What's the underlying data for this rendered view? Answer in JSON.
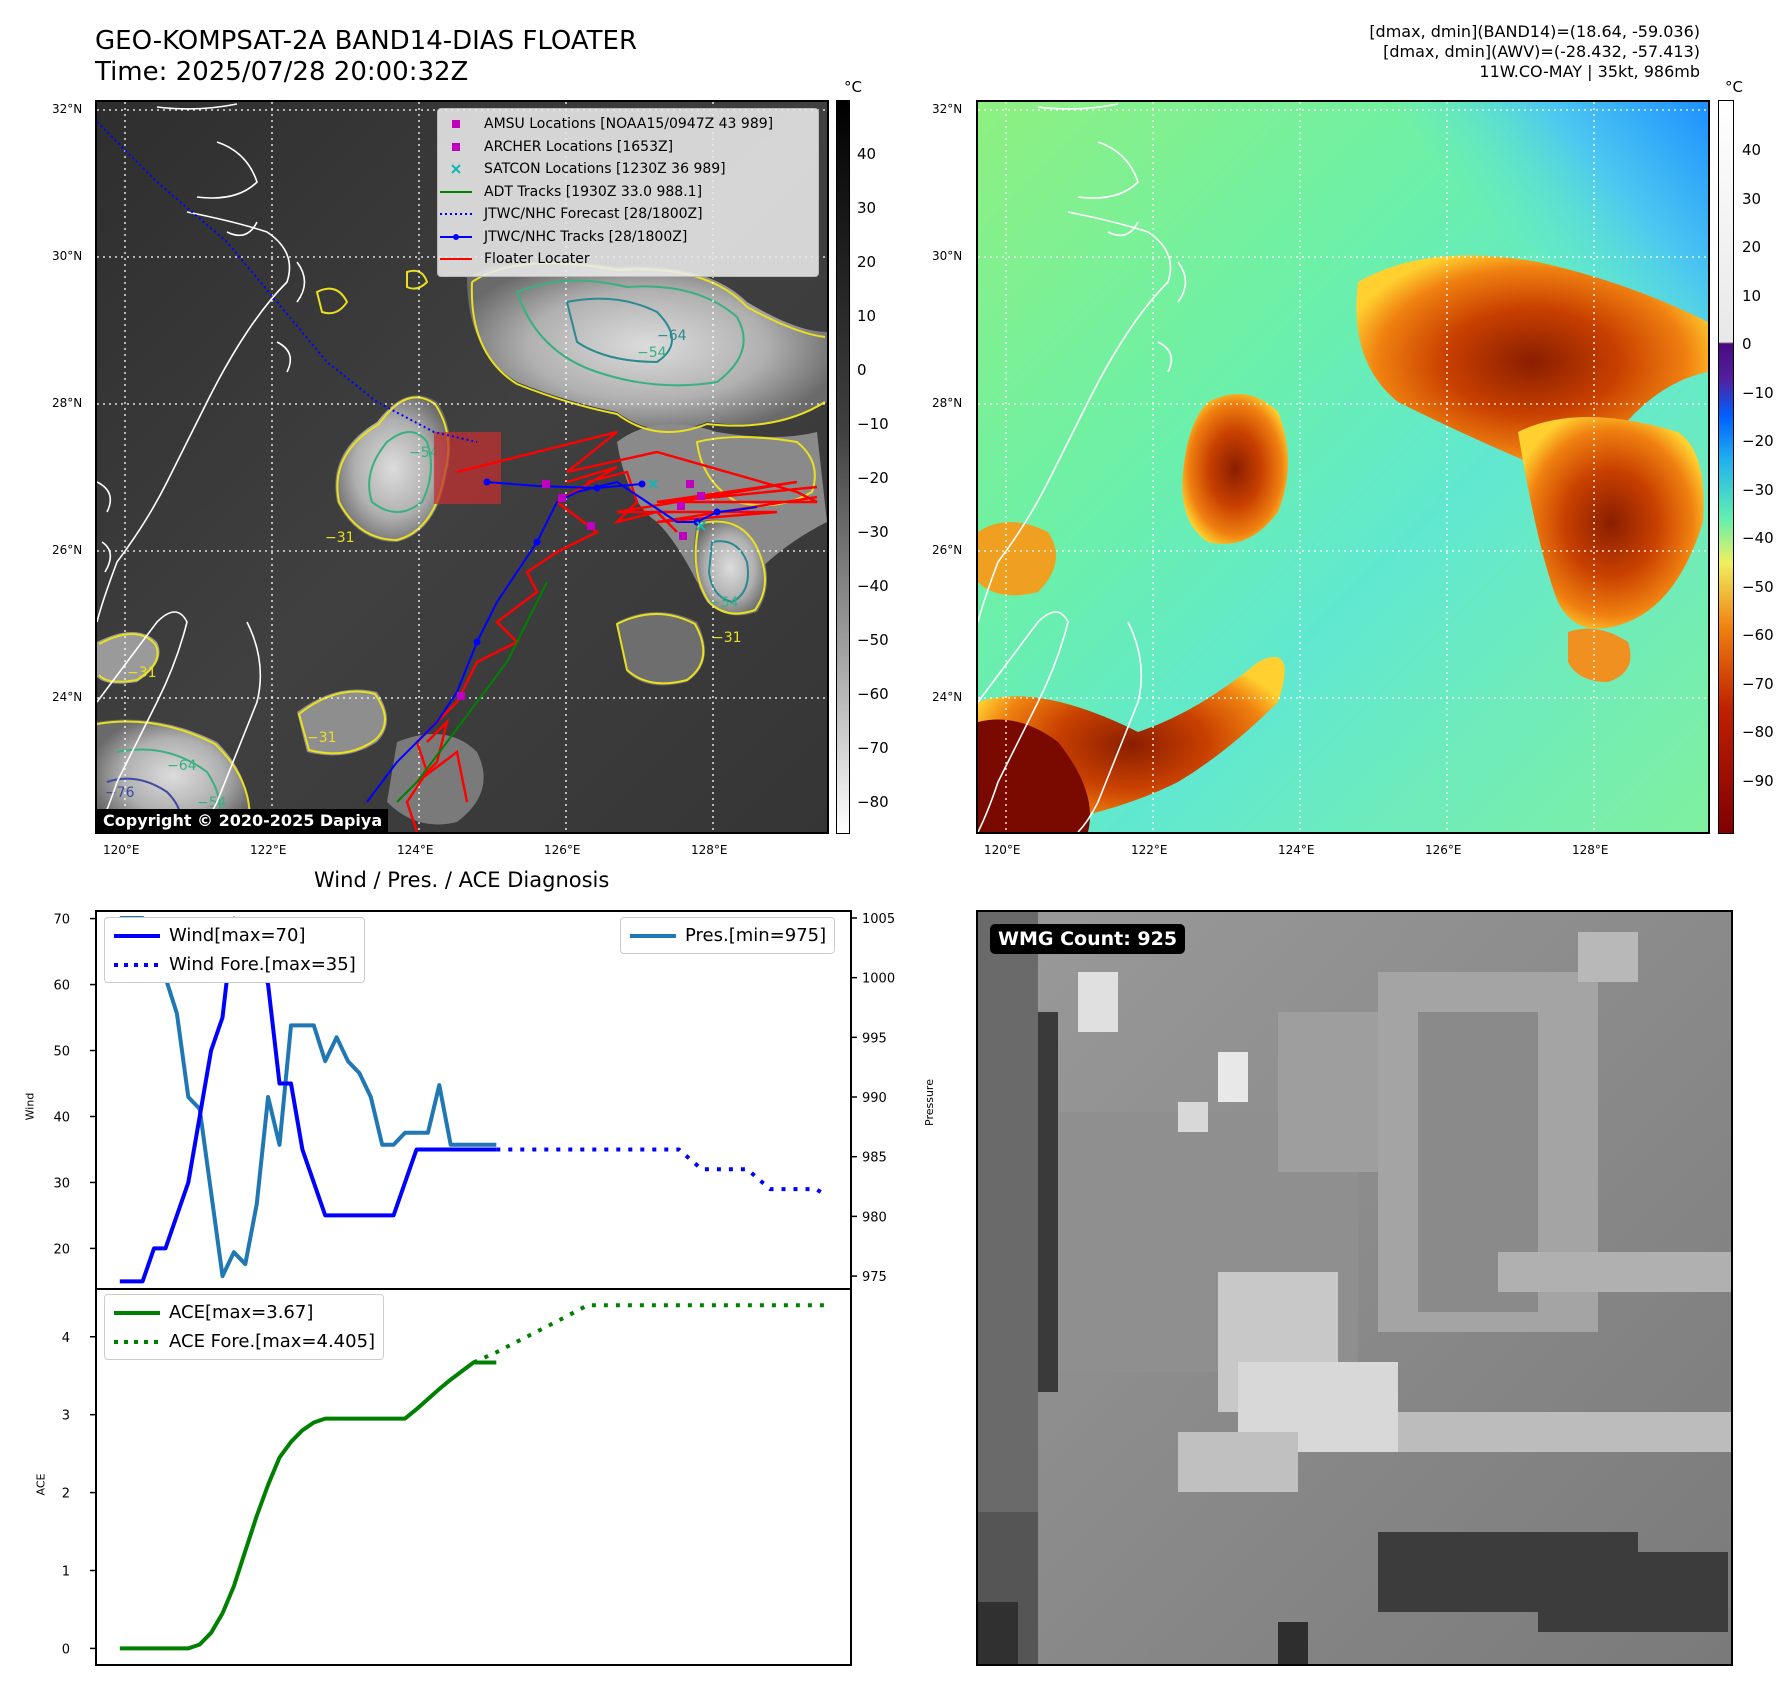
{
  "header": {
    "title_line1": "GEO-KOMPSAT-2A BAND14-DIAS FLOATER",
    "title_line2": "Time: 2025/07/28 20:00:32Z",
    "info_line1": "[dmax, dmin](BAND14)=(18.64, -59.036)",
    "info_line2": "[dmax, dmin](AWV)=(-28.432, -57.413)",
    "info_line3": "11W.CO-MAY | 35kt, 986mb"
  },
  "map_axes": {
    "lat_labels": [
      "32°N",
      "30°N",
      "28°N",
      "26°N",
      "24°N"
    ],
    "lon_labels": [
      "120°E",
      "122°E",
      "124°E",
      "126°E",
      "128°E"
    ]
  },
  "ir_map": {
    "colorbar_unit": "°C",
    "colorbar_ticks": [
      "40",
      "30",
      "20",
      "10",
      "0",
      "−10",
      "−20",
      "−30",
      "−40",
      "−50",
      "−60",
      "−70",
      "−80"
    ],
    "contour_labels": [
      "−54",
      "−31",
      "−54",
      "−64",
      "−31",
      "−54",
      "−31",
      "−64",
      "−54",
      "−31",
      "−76"
    ],
    "copyright": "Copyright © 2020-2025 Dapiya",
    "legend": [
      {
        "label": "AMSU Locations [NOAA15/0947Z 43 989]",
        "symbol": "square",
        "color": "#c000c0"
      },
      {
        "label": "ARCHER Locations [1653Z]",
        "symbol": "square",
        "color": "#c000c0"
      },
      {
        "label": "SATCON Locations [1230Z 36 989]",
        "symbol": "x",
        "color": "#10b8b8"
      },
      {
        "label": "ADT Tracks [1930Z 33.0 988.1]",
        "symbol": "line",
        "color": "#008000"
      },
      {
        "label": "JTWC/NHC Forecast [28/1800Z]",
        "symbol": "dotted",
        "color": "#0000ff"
      },
      {
        "label": "JTWC/NHC Tracks [28/1800Z]",
        "symbol": "line-dot",
        "color": "#0000ff"
      },
      {
        "label": "Floater Locater",
        "symbol": "line",
        "color": "#ff0000"
      }
    ]
  },
  "wv_map": {
    "colorbar_unit": "°C",
    "colorbar_ticks": [
      "40",
      "30",
      "20",
      "10",
      "0",
      "−10",
      "−20",
      "−30",
      "−40",
      "−50",
      "−60",
      "−70",
      "−80",
      "−90"
    ]
  },
  "diag": {
    "title": "Wind / Pres. / ACE Diagnosis",
    "wind_ylabel": "Wind",
    "pres_ylabel": "Pressure",
    "ace_ylabel": "ACE",
    "wind_ticks": [
      "70",
      "60",
      "50",
      "40",
      "30",
      "20"
    ],
    "pres_ticks": [
      "1005",
      "1000",
      "995",
      "990",
      "985",
      "980",
      "975"
    ],
    "ace_ticks": [
      "4",
      "3",
      "2",
      "1",
      "0"
    ],
    "legend_wind": "Wind[max=70]",
    "legend_wind_fore": "Wind Fore.[max=35]",
    "legend_pres": "Pres.[min=975]",
    "legend_ace": "ACE[max=3.67]",
    "legend_ace_fore": "ACE Fore.[max=4.405]",
    "colors": {
      "wind": "#0000ff",
      "pres": "#1f77b4",
      "ace": "#008000"
    }
  },
  "wmg": {
    "label": "WMG Count: 925"
  },
  "chart_data": [
    {
      "type": "line",
      "title": "Wind / Pres. / ACE Diagnosis",
      "ylabel": "Wind",
      "ylim": [
        14,
        71
      ],
      "series": [
        {
          "name": "Wind[max=70]",
          "x": [
            0,
            1,
            2,
            3,
            4,
            5,
            6,
            7,
            8,
            9,
            10,
            11,
            12,
            13,
            14,
            15,
            16,
            17,
            18,
            19,
            20,
            21,
            22,
            23,
            24,
            25,
            26,
            27,
            28,
            29,
            30,
            31,
            32,
            33
          ],
          "values": [
            15,
            15,
            15,
            20,
            20,
            25,
            30,
            40,
            50,
            55,
            70,
            65,
            65,
            60,
            45,
            45,
            35,
            30,
            25,
            25,
            25,
            25,
            25,
            25,
            25,
            30,
            35,
            35,
            35,
            35,
            35,
            35,
            35,
            35
          ]
        },
        {
          "name": "Wind Fore.[max=35]",
          "x": [
            33,
            35,
            37,
            39,
            41,
            43,
            45,
            47,
            49,
            51,
            52,
            53,
            55,
            57,
            59,
            61,
            62
          ],
          "values": [
            35,
            35,
            35,
            35,
            35,
            35,
            35,
            35,
            35,
            32,
            32,
            32,
            32,
            29,
            29,
            29,
            28
          ]
        }
      ]
    },
    {
      "type": "line",
      "ylabel": "Pressure",
      "ylim": [
        974,
        1005.5
      ],
      "series": [
        {
          "name": "Pres.[min=975]",
          "x": [
            0,
            1,
            2,
            3,
            4,
            5,
            6,
            7,
            8,
            9,
            10,
            11,
            12,
            13,
            14,
            15,
            16,
            17,
            18,
            19,
            20,
            21,
            22,
            23,
            24,
            25,
            26,
            27,
            28,
            29,
            30,
            31,
            32,
            33
          ],
          "values": [
            1005,
            1005,
            1005,
            1001,
            1000,
            997,
            990,
            989,
            982,
            975,
            977,
            976,
            981,
            990,
            986,
            996,
            996,
            996,
            993,
            995,
            993,
            992,
            990,
            986,
            986,
            987,
            987,
            987,
            991,
            986,
            986,
            986,
            986,
            986
          ]
        }
      ]
    },
    {
      "type": "line",
      "ylabel": "ACE",
      "ylim": [
        -0.2,
        4.6
      ],
      "series": [
        {
          "name": "ACE[max=3.67]",
          "x": [
            0,
            2,
            4,
            6,
            7,
            8,
            9,
            10,
            11,
            12,
            13,
            14,
            15,
            16,
            17,
            18,
            19,
            20,
            21,
            22,
            23,
            24,
            25,
            26,
            27,
            28,
            29,
            30,
            31,
            32,
            33
          ],
          "values": [
            0,
            0,
            0,
            0,
            0.05,
            0.2,
            0.45,
            0.8,
            1.25,
            1.7,
            2.1,
            2.45,
            2.65,
            2.8,
            2.9,
            2.95,
            2.95,
            2.95,
            2.95,
            2.95,
            2.95,
            2.95,
            2.95,
            3.07,
            3.2,
            3.33,
            3.45,
            3.56,
            3.67,
            3.67,
            3.67
          ]
        },
        {
          "name": "ACE Fore.[max=4.405]",
          "x": [
            31,
            33,
            35,
            37,
            39,
            41,
            43,
            45,
            47,
            49,
            51,
            53,
            55,
            57,
            59,
            61,
            62
          ],
          "values": [
            3.67,
            3.8,
            3.95,
            4.1,
            4.25,
            4.405,
            4.405,
            4.405,
            4.405,
            4.405,
            4.405,
            4.405,
            4.405,
            4.405,
            4.405,
            4.405,
            4.405
          ]
        }
      ]
    }
  ]
}
